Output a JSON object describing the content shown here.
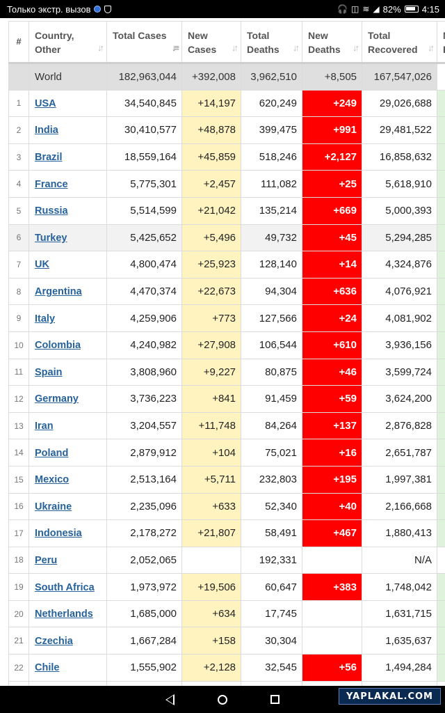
{
  "statusbar": {
    "carrier": "Только экстр. вызов",
    "battery": "82%",
    "time": "4:15"
  },
  "table": {
    "headers": {
      "num": "#",
      "country": "Country, Other",
      "total_cases": "Total Cases",
      "new_cases": "New Cases",
      "total_deaths": "Total Deaths",
      "new_deaths": "New Deaths",
      "total_recovered": "Total Recovered",
      "extra": "N R"
    },
    "world": {
      "country": "World",
      "total_cases": "182,963,044",
      "new_cases": "+392,008",
      "total_deaths": "3,962,510",
      "new_deaths": "+8,505",
      "total_recovered": "167,547,026"
    },
    "rows": [
      {
        "num": "1",
        "country": "USA",
        "total_cases": "34,540,845",
        "new_cases": "+14,197",
        "total_deaths": "620,249",
        "new_deaths": "+249",
        "total_recovered": "29,026,688"
      },
      {
        "num": "2",
        "country": "India",
        "total_cases": "30,410,577",
        "new_cases": "+48,878",
        "total_deaths": "399,475",
        "new_deaths": "+991",
        "total_recovered": "29,481,522"
      },
      {
        "num": "3",
        "country": "Brazil",
        "total_cases": "18,559,164",
        "new_cases": "+45,859",
        "total_deaths": "518,246",
        "new_deaths": "+2,127",
        "total_recovered": "16,858,632"
      },
      {
        "num": "4",
        "country": "France",
        "total_cases": "5,775,301",
        "new_cases": "+2,457",
        "total_deaths": "111,082",
        "new_deaths": "+25",
        "total_recovered": "5,618,910"
      },
      {
        "num": "5",
        "country": "Russia",
        "total_cases": "5,514,599",
        "new_cases": "+21,042",
        "total_deaths": "135,214",
        "new_deaths": "+669",
        "total_recovered": "5,000,393"
      },
      {
        "num": "6",
        "country": "Turkey",
        "total_cases": "5,425,652",
        "new_cases": "+5,496",
        "total_deaths": "49,732",
        "new_deaths": "+45",
        "total_recovered": "5,294,285",
        "striped": true
      },
      {
        "num": "7",
        "country": "UK",
        "total_cases": "4,800,474",
        "new_cases": "+25,923",
        "total_deaths": "128,140",
        "new_deaths": "+14",
        "total_recovered": "4,324,876"
      },
      {
        "num": "8",
        "country": "Argentina",
        "total_cases": "4,470,374",
        "new_cases": "+22,673",
        "total_deaths": "94,304",
        "new_deaths": "+636",
        "total_recovered": "4,076,921"
      },
      {
        "num": "9",
        "country": "Italy",
        "total_cases": "4,259,906",
        "new_cases": "+773",
        "total_deaths": "127,566",
        "new_deaths": "+24",
        "total_recovered": "4,081,902"
      },
      {
        "num": "10",
        "country": "Colombia",
        "total_cases": "4,240,982",
        "new_cases": "+27,908",
        "total_deaths": "106,544",
        "new_deaths": "+610",
        "total_recovered": "3,936,156"
      },
      {
        "num": "11",
        "country": "Spain",
        "total_cases": "3,808,960",
        "new_cases": "+9,227",
        "total_deaths": "80,875",
        "new_deaths": "+46",
        "total_recovered": "3,599,724"
      },
      {
        "num": "12",
        "country": "Germany",
        "total_cases": "3,736,223",
        "new_cases": "+841",
        "total_deaths": "91,459",
        "new_deaths": "+59",
        "total_recovered": "3,624,200"
      },
      {
        "num": "13",
        "country": "Iran",
        "total_cases": "3,204,557",
        "new_cases": "+11,748",
        "total_deaths": "84,264",
        "new_deaths": "+137",
        "total_recovered": "2,876,828"
      },
      {
        "num": "14",
        "country": "Poland",
        "total_cases": "2,879,912",
        "new_cases": "+104",
        "total_deaths": "75,021",
        "new_deaths": "+16",
        "total_recovered": "2,651,787"
      },
      {
        "num": "15",
        "country": "Mexico",
        "total_cases": "2,513,164",
        "new_cases": "+5,711",
        "total_deaths": "232,803",
        "new_deaths": "+195",
        "total_recovered": "1,997,381"
      },
      {
        "num": "16",
        "country": "Ukraine",
        "total_cases": "2,235,096",
        "new_cases": "+633",
        "total_deaths": "52,340",
        "new_deaths": "+40",
        "total_recovered": "2,166,668"
      },
      {
        "num": "17",
        "country": "Indonesia",
        "total_cases": "2,178,272",
        "new_cases": "+21,807",
        "total_deaths": "58,491",
        "new_deaths": "+467",
        "total_recovered": "1,880,413"
      },
      {
        "num": "18",
        "country": "Peru",
        "total_cases": "2,052,065",
        "new_cases": "",
        "total_deaths": "192,331",
        "new_deaths": "",
        "total_recovered": "N/A",
        "no_extra": true
      },
      {
        "num": "19",
        "country": "South Africa",
        "total_cases": "1,973,972",
        "new_cases": "+19,506",
        "total_deaths": "60,647",
        "new_deaths": "+383",
        "total_recovered": "1,748,042"
      },
      {
        "num": "20",
        "country": "Netherlands",
        "total_cases": "1,685,000",
        "new_cases": "+634",
        "total_deaths": "17,745",
        "new_deaths": "",
        "total_recovered": "1,631,715"
      },
      {
        "num": "21",
        "country": "Czechia",
        "total_cases": "1,667,284",
        "new_cases": "+158",
        "total_deaths": "30,304",
        "new_deaths": "",
        "total_recovered": "1,635,637"
      },
      {
        "num": "22",
        "country": "Chile",
        "total_cases": "1,555,902",
        "new_cases": "+2,128",
        "total_deaths": "32,545",
        "new_deaths": "+56",
        "total_recovered": "1,494,284"
      },
      {
        "num": "",
        "country": "",
        "total_cases": "",
        "new_cases": "",
        "total_deaths": "",
        "new_deaths": "",
        "total_recovered": ""
      }
    ]
  },
  "watermark": "YAPLAKAL.COM",
  "colors": {
    "new_cases_bg": "#fff3c0",
    "new_deaths_bg": "#ff0000",
    "recovered_extra_bg": "#dff3dc",
    "link": "#26629b"
  }
}
